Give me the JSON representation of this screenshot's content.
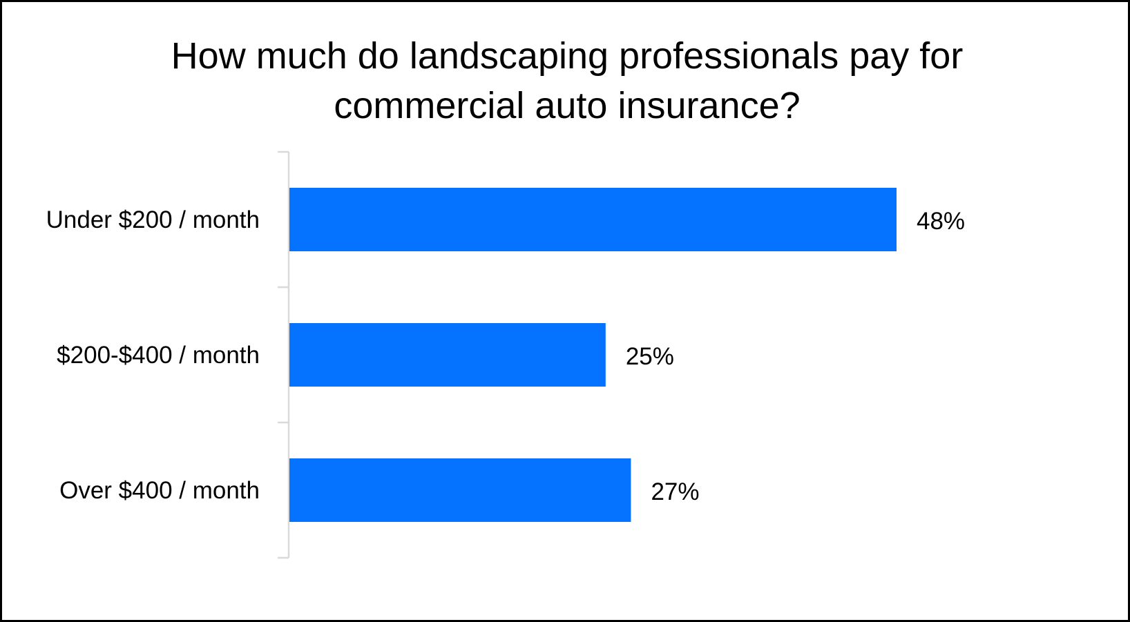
{
  "chart_data": {
    "type": "bar",
    "orientation": "horizontal",
    "title_lines": [
      "How much do landscaping professionals pay for",
      "commercial auto insurance?"
    ],
    "categories": [
      "Under $200 / month",
      "$200-$400 / month",
      "Over $400 / month"
    ],
    "values": [
      48,
      25,
      27
    ],
    "value_labels": [
      "48%",
      "25%",
      "27%"
    ],
    "unit": "%",
    "xlim": [
      0,
      50
    ],
    "bar_color": "#0573FF",
    "axis_color": "#D9D9D9",
    "grid": false,
    "legend": "none"
  }
}
